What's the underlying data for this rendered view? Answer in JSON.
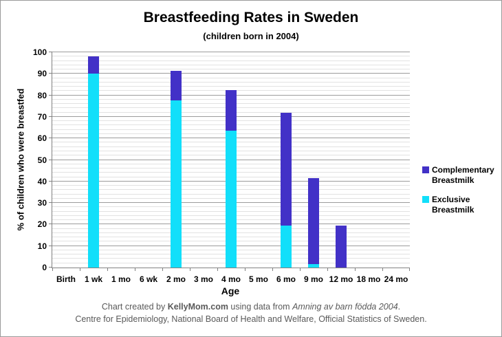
{
  "chart_data": {
    "type": "bar",
    "stacked": true,
    "title": "Breastfeeding Rates in Sweden",
    "subtitle": "(children born in 2004)",
    "xlabel": "Age",
    "ylabel": "% of children who were breastfed",
    "categories": [
      "Birth",
      "1 wk",
      "1 mo",
      "6 wk",
      "2 mo",
      "3 mo",
      "4 mo",
      "5 mo",
      "6 mo",
      "9 mo",
      "12 mo",
      "18 mo",
      "24 mo"
    ],
    "series": [
      {
        "name": "Exclusive Breastmilk",
        "color_key": "exclusive",
        "values": [
          0,
          90,
          0,
          0,
          77.5,
          0,
          63.5,
          0,
          19.5,
          1.5,
          0,
          0,
          0
        ]
      },
      {
        "name": "Complementary Breastmilk",
        "color_key": "complementary",
        "values": [
          0,
          8,
          0,
          0,
          14,
          0,
          19,
          0,
          52.5,
          40,
          19.5,
          0,
          0
        ]
      }
    ],
    "ylim": [
      0,
      100
    ],
    "y_ticks": [
      0,
      10,
      20,
      30,
      40,
      50,
      60,
      70,
      80,
      90,
      100
    ],
    "y_major_step": 10,
    "y_minor_step": 2,
    "grid": true,
    "legend_position": "right",
    "legend": [
      {
        "label": "Complementary Breastmilk",
        "color_key": "complementary"
      },
      {
        "label": "Exclusive Breastmilk",
        "color_key": "exclusive"
      }
    ]
  },
  "colors": {
    "exclusive": "#12DFFA",
    "complementary": "#4231C7",
    "grid_major": "#9B9B9B",
    "grid_minor": "#E2E2E2",
    "axis": "#808080",
    "text": "#000000",
    "footer_text": "#595959",
    "border": "#999999"
  },
  "footer": {
    "line1_segments": [
      {
        "text": "Chart created by ",
        "style": "normal"
      },
      {
        "text": "KellyMom.com",
        "style": "bold"
      },
      {
        "text": " using data from ",
        "style": "normal"
      },
      {
        "text": "Amning av barn födda 2004",
        "style": "italic"
      },
      {
        "text": ".",
        "style": "normal"
      }
    ],
    "line2": "Centre for Epidemiology, National Board of Health and Welfare, Official Statistics of Sweden."
  }
}
